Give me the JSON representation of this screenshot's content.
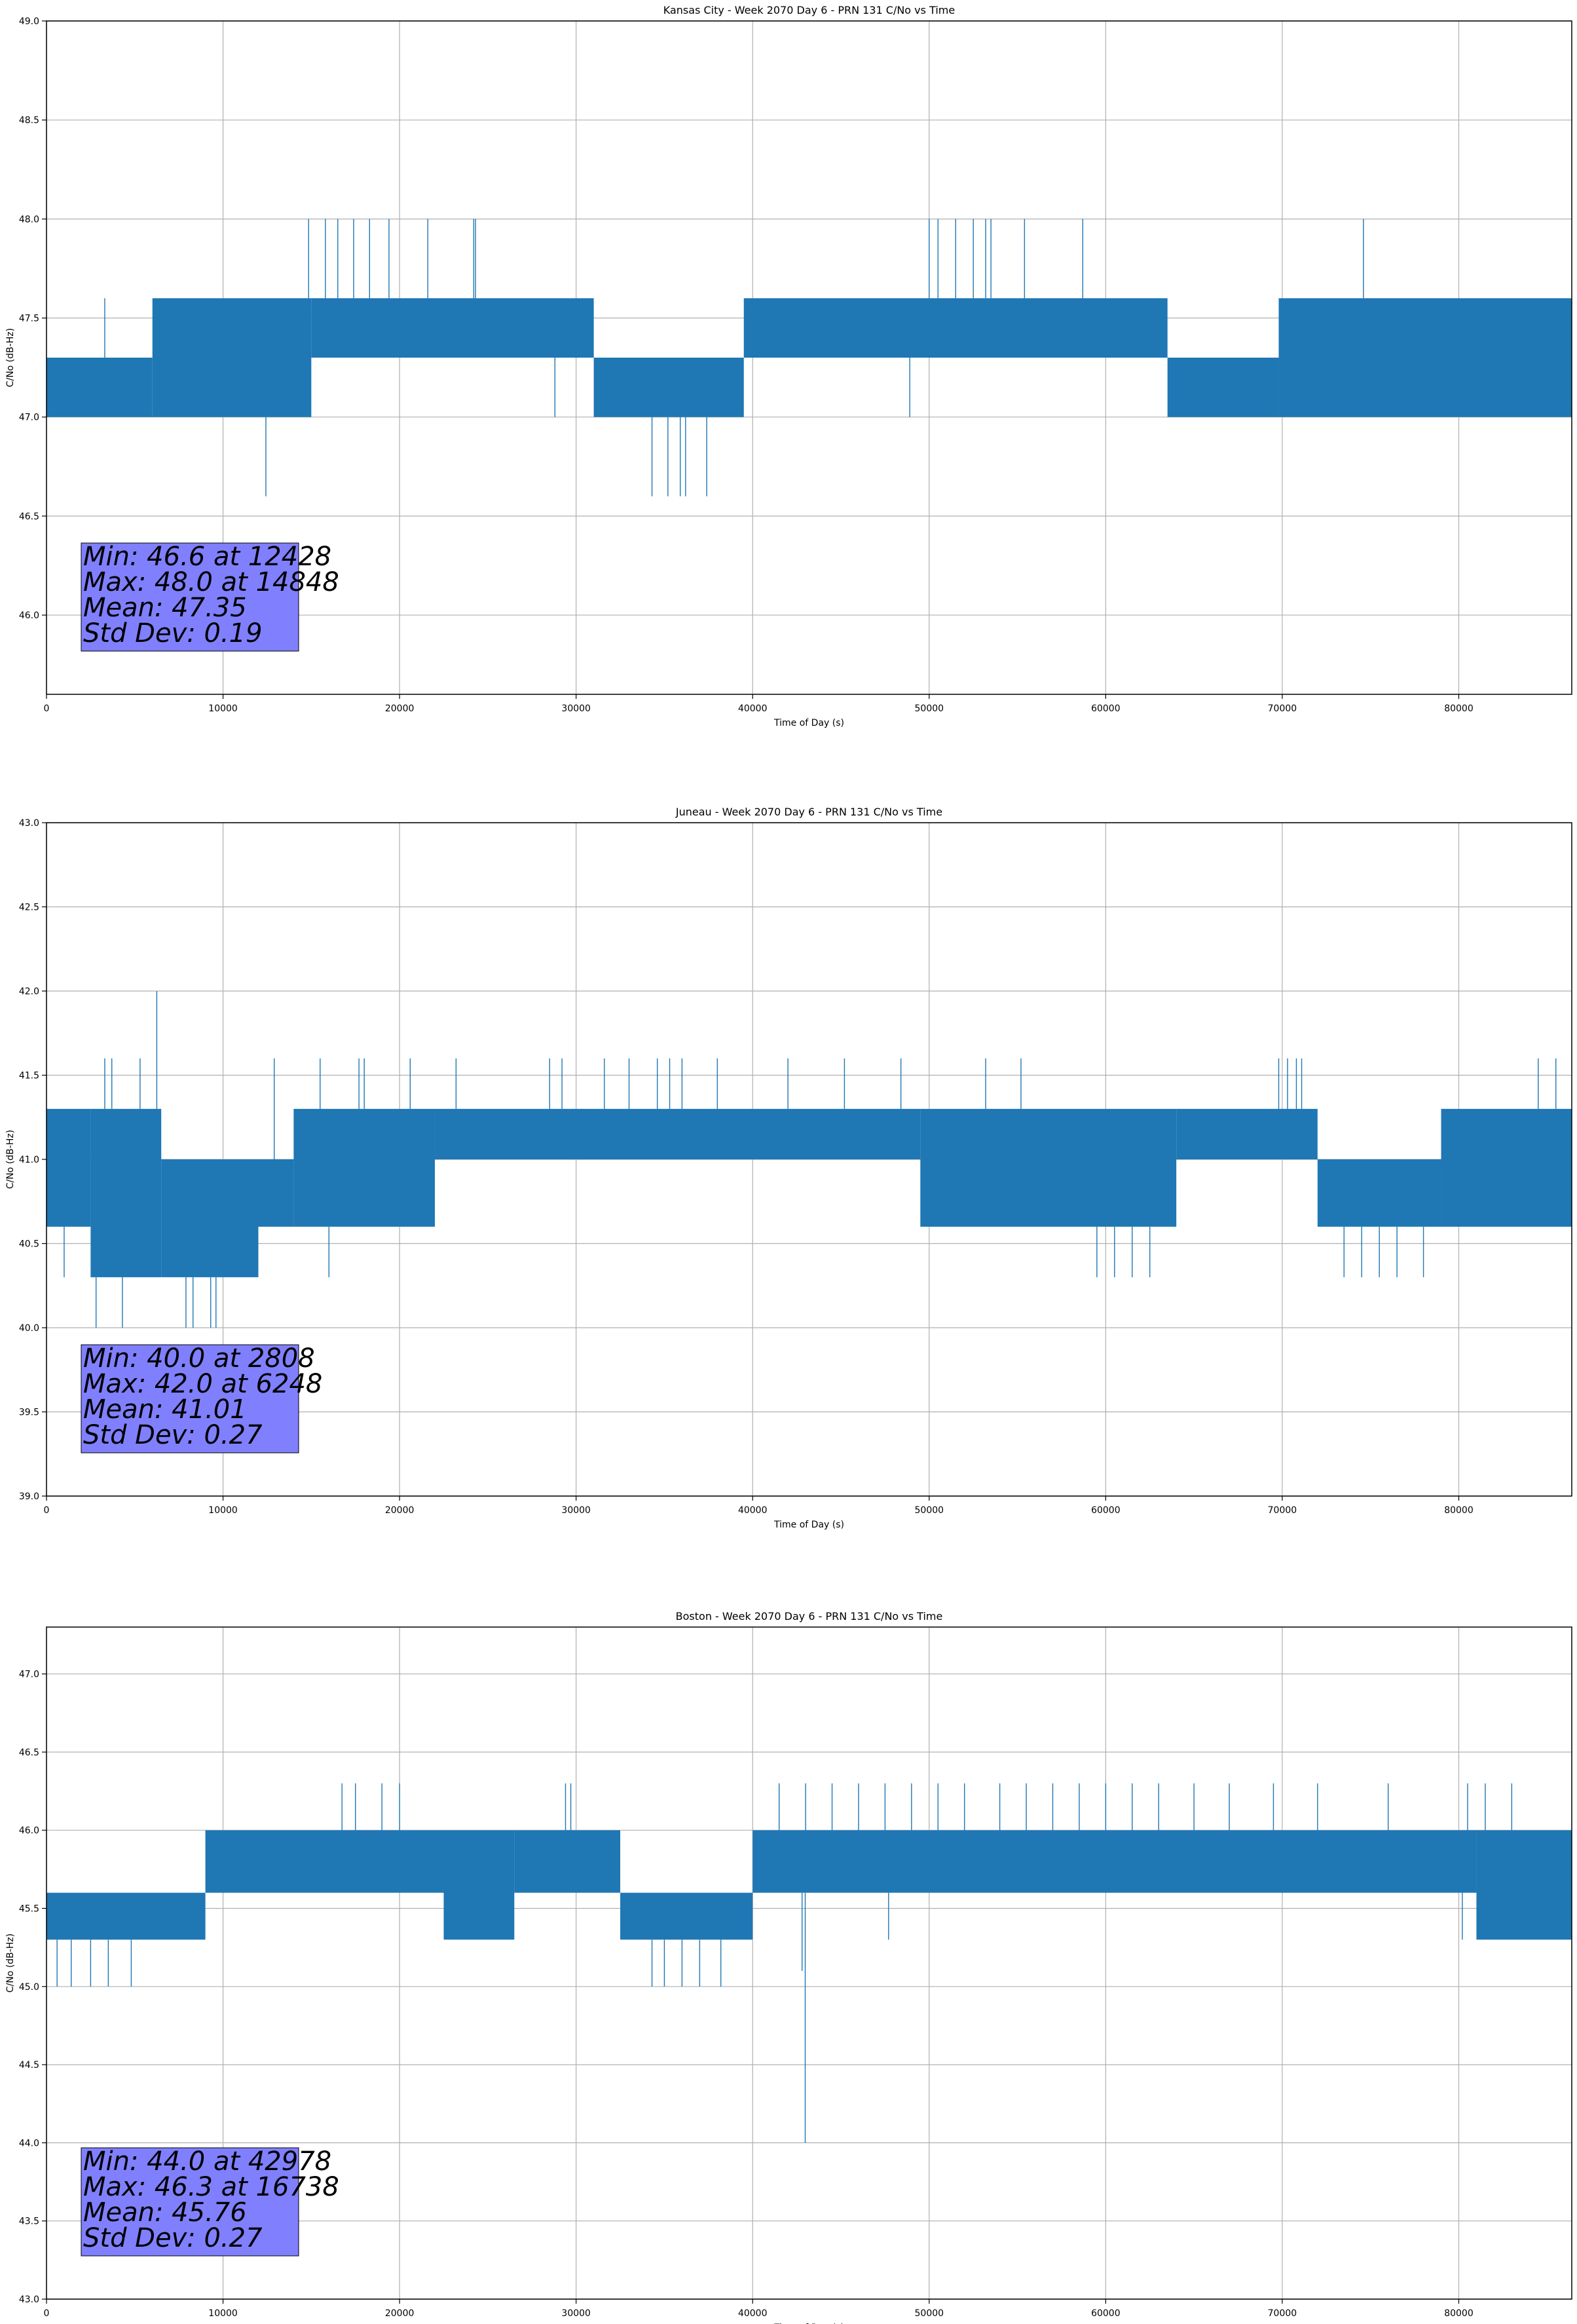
{
  "colors": {
    "series": "#1f77b4",
    "stats_box": "#8080ff",
    "grid": "#b0b0b0"
  },
  "chart_data": [
    {
      "type": "line",
      "title": "Kansas City - Week 2070 Day 6 - PRN 131 C/No vs Time",
      "xlabel": "Time of Day (s)",
      "ylabel": "C/No (dB-Hz)",
      "xlim": [
        0,
        86400
      ],
      "ylim": [
        45.6,
        49.0
      ],
      "xticks": [
        "0",
        "10000",
        "20000",
        "30000",
        "40000",
        "50000",
        "60000",
        "70000",
        "80000"
      ],
      "yticks": [
        "46.0",
        "46.5",
        "47.0",
        "47.5",
        "48.0",
        "48.5",
        "49.0"
      ],
      "grid": true,
      "stats": [
        "Min: 46.6 at 12428",
        "Max: 48.0 at 14848",
        "Mean: 47.35",
        "Std Dev: 0.19"
      ],
      "series": [
        {
          "bands": [
            {
              "x": [
                0,
                6000
              ],
              "y": [
                47.0,
                47.3
              ]
            },
            {
              "x": [
                6000,
                15000
              ],
              "y": [
                47.0,
                47.6
              ]
            },
            {
              "x": [
                15000,
                31000
              ],
              "y": [
                47.3,
                47.6
              ]
            },
            {
              "x": [
                31000,
                39500
              ],
              "y": [
                47.0,
                47.3
              ]
            },
            {
              "x": [
                39500,
                63500
              ],
              "y": [
                47.3,
                47.6
              ]
            },
            {
              "x": [
                63500,
                69800
              ],
              "y": [
                47.0,
                47.3
              ]
            },
            {
              "x": [
                69800,
                86400
              ],
              "y": [
                47.0,
                47.6
              ]
            }
          ],
          "spikes": [
            [
              3300,
              47.6
            ],
            [
              12428,
              46.6
            ],
            [
              14848,
              48.0
            ],
            [
              15800,
              48.0
            ],
            [
              16500,
              48.0
            ],
            [
              17400,
              48.0
            ],
            [
              18300,
              48.0
            ],
            [
              19400,
              48.0
            ],
            [
              21600,
              48.0
            ],
            [
              24200,
              48.0
            ],
            [
              24300,
              48.0
            ],
            [
              34300,
              46.6
            ],
            [
              35200,
              46.6
            ],
            [
              35900,
              46.6
            ],
            [
              36200,
              46.6
            ],
            [
              37400,
              46.6
            ],
            [
              50000,
              48.0
            ],
            [
              50500,
              48.0
            ],
            [
              51500,
              48.0
            ],
            [
              52500,
              48.0
            ],
            [
              53200,
              48.0
            ],
            [
              53500,
              48.0
            ],
            [
              55400,
              48.0
            ],
            [
              58700,
              48.0
            ],
            [
              74600,
              48.0
            ],
            [
              28800,
              47.0
            ],
            [
              48900,
              47.0
            ]
          ]
        }
      ]
    },
    {
      "type": "line",
      "title": "Juneau - Week 2070 Day 6 - PRN 131 C/No vs Time",
      "xlabel": "Time of Day (s)",
      "ylabel": "C/No (dB-Hz)",
      "xlim": [
        0,
        86400
      ],
      "ylim": [
        39.0,
        43.0
      ],
      "xticks": [
        "0",
        "10000",
        "20000",
        "30000",
        "40000",
        "50000",
        "60000",
        "70000",
        "80000"
      ],
      "yticks": [
        "39.0",
        "39.5",
        "40.0",
        "40.5",
        "41.0",
        "41.5",
        "42.0",
        "42.5",
        "43.0"
      ],
      "grid": true,
      "stats": [
        "Min: 40.0 at 2808",
        "Max: 42.0 at 6248",
        "Mean: 41.01",
        "Std Dev: 0.27"
      ],
      "series": [
        {
          "bands": [
            {
              "x": [
                0,
                2500
              ],
              "y": [
                40.6,
                41.3
              ]
            },
            {
              "x": [
                2500,
                6500
              ],
              "y": [
                40.3,
                41.3
              ]
            },
            {
              "x": [
                6500,
                12000
              ],
              "y": [
                40.3,
                41.0
              ]
            },
            {
              "x": [
                12000,
                14000
              ],
              "y": [
                40.6,
                41.0
              ]
            },
            {
              "x": [
                14000,
                22000
              ],
              "y": [
                40.6,
                41.3
              ]
            },
            {
              "x": [
                22000,
                49500
              ],
              "y": [
                41.0,
                41.3
              ]
            },
            {
              "x": [
                49500,
                64000
              ],
              "y": [
                40.6,
                41.3
              ]
            },
            {
              "x": [
                64000,
                72000
              ],
              "y": [
                41.0,
                41.3
              ]
            },
            {
              "x": [
                72000,
                79000
              ],
              "y": [
                40.6,
                41.0
              ]
            },
            {
              "x": [
                79000,
                86400
              ],
              "y": [
                40.6,
                41.3
              ]
            }
          ],
          "spikes": [
            [
              1000,
              40.3
            ],
            [
              2808,
              40.0
            ],
            [
              3300,
              41.6
            ],
            [
              3700,
              41.6
            ],
            [
              4300,
              40.0
            ],
            [
              5300,
              41.6
            ],
            [
              6248,
              42.0
            ],
            [
              7900,
              40.0
            ],
            [
              8300,
              40.0
            ],
            [
              9300,
              40.0
            ],
            [
              9600,
              40.0
            ],
            [
              12900,
              41.6
            ],
            [
              15500,
              41.6
            ],
            [
              16000,
              40.3
            ],
            [
              17700,
              41.6
            ],
            [
              18000,
              41.6
            ],
            [
              20600,
              41.6
            ],
            [
              23200,
              41.6
            ],
            [
              28500,
              41.6
            ],
            [
              29200,
              41.6
            ],
            [
              31600,
              41.6
            ],
            [
              33000,
              41.6
            ],
            [
              34600,
              41.6
            ],
            [
              35300,
              41.6
            ],
            [
              36000,
              41.6
            ],
            [
              38000,
              41.6
            ],
            [
              42000,
              41.6
            ],
            [
              45200,
              41.6
            ],
            [
              48400,
              41.6
            ],
            [
              53200,
              41.6
            ],
            [
              55200,
              41.6
            ],
            [
              59500,
              40.3
            ],
            [
              60500,
              40.3
            ],
            [
              61500,
              40.3
            ],
            [
              62500,
              40.3
            ],
            [
              69800,
              41.6
            ],
            [
              70300,
              41.6
            ],
            [
              70800,
              41.6
            ],
            [
              71100,
              41.6
            ],
            [
              73500,
              40.3
            ],
            [
              74500,
              40.3
            ],
            [
              75500,
              40.3
            ],
            [
              76500,
              40.3
            ],
            [
              78000,
              40.3
            ],
            [
              84500,
              41.6
            ],
            [
              85500,
              41.6
            ]
          ]
        }
      ]
    },
    {
      "type": "line",
      "title": "Boston - Week 2070 Day 6 - PRN 131 C/No vs Time",
      "xlabel": "Time of Day (s)",
      "ylabel": "C/No (dB-Hz)",
      "xlim": [
        0,
        86400
      ],
      "ylim": [
        43.0,
        47.3
      ],
      "xticks": [
        "0",
        "10000",
        "20000",
        "30000",
        "40000",
        "50000",
        "60000",
        "70000",
        "80000"
      ],
      "yticks": [
        "43.0",
        "43.5",
        "44.0",
        "44.5",
        "45.0",
        "45.5",
        "46.0",
        "46.5",
        "47.0"
      ],
      "grid": true,
      "stats": [
        "Min: 44.0 at 42978",
        "Max: 46.3 at 16738",
        "Mean: 45.76",
        "Std Dev: 0.27"
      ],
      "series": [
        {
          "bands": [
            {
              "x": [
                0,
                9000
              ],
              "y": [
                45.3,
                45.6
              ]
            },
            {
              "x": [
                9000,
                22500
              ],
              "y": [
                45.6,
                46.0
              ]
            },
            {
              "x": [
                22500,
                26500
              ],
              "y": [
                45.3,
                46.0
              ]
            },
            {
              "x": [
                26500,
                32500
              ],
              "y": [
                45.6,
                46.0
              ]
            },
            {
              "x": [
                32500,
                40000
              ],
              "y": [
                45.3,
                45.6
              ]
            },
            {
              "x": [
                40000,
                81000
              ],
              "y": [
                45.6,
                46.0
              ]
            },
            {
              "x": [
                81000,
                86400
              ],
              "y": [
                45.3,
                46.0
              ]
            }
          ],
          "spikes": [
            [
              600,
              45.0
            ],
            [
              1400,
              45.0
            ],
            [
              2500,
              45.0
            ],
            [
              3500,
              45.0
            ],
            [
              4800,
              45.0
            ],
            [
              16738,
              46.3
            ],
            [
              17500,
              46.3
            ],
            [
              19000,
              46.3
            ],
            [
              20000,
              46.3
            ],
            [
              29400,
              46.3
            ],
            [
              29700,
              46.3
            ],
            [
              34300,
              45.0
            ],
            [
              35000,
              45.0
            ],
            [
              36000,
              45.0
            ],
            [
              37000,
              45.0
            ],
            [
              38200,
              45.0
            ],
            [
              42800,
              45.1
            ],
            [
              42978,
              44.0
            ],
            [
              41500,
              46.3
            ],
            [
              43000,
              46.3
            ],
            [
              44500,
              46.3
            ],
            [
              46000,
              46.3
            ],
            [
              47500,
              46.3
            ],
            [
              49000,
              46.3
            ],
            [
              50500,
              46.3
            ],
            [
              52000,
              46.3
            ],
            [
              54000,
              46.3
            ],
            [
              55500,
              46.3
            ],
            [
              57000,
              46.3
            ],
            [
              58500,
              46.3
            ],
            [
              60000,
              46.3
            ],
            [
              61500,
              46.3
            ],
            [
              63000,
              46.3
            ],
            [
              65000,
              46.3
            ],
            [
              67000,
              46.3
            ],
            [
              69500,
              46.3
            ],
            [
              72000,
              46.3
            ],
            [
              76000,
              46.3
            ],
            [
              80500,
              46.3
            ],
            [
              81500,
              46.3
            ],
            [
              83000,
              46.3
            ],
            [
              47700,
              45.3
            ],
            [
              80200,
              45.3
            ],
            [
              84000,
              45.3
            ]
          ]
        }
      ]
    }
  ]
}
